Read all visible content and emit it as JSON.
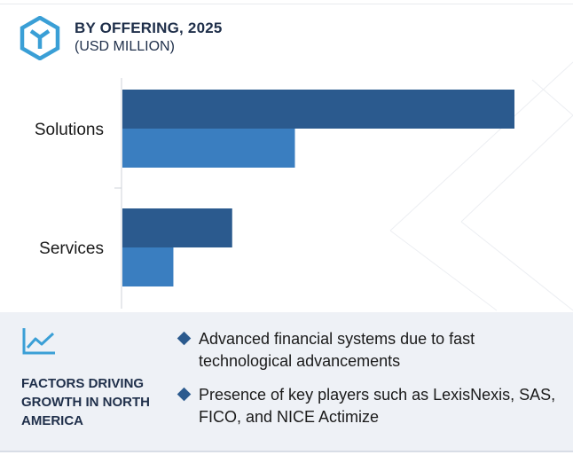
{
  "header": {
    "title": "BY OFFERING, 2025",
    "subtitle": "(USD MILLION)",
    "logo_icon": "hexagon-y-logo-icon"
  },
  "colors": {
    "dark_bar": "#2b5a8e",
    "light_bar": "#3a7ec0",
    "logo": "#3a9fd6",
    "panel_bg": "#eef1f6",
    "title_text": "#1f2f4a"
  },
  "chart_data": {
    "type": "bar",
    "orientation": "horizontal",
    "categories": [
      "Solutions",
      "Services"
    ],
    "series": [
      {
        "values": [
          100,
          28
        ]
      },
      {
        "values": [
          44,
          13
        ]
      }
    ],
    "xlim": [
      0,
      100
    ],
    "title": "BY OFFERING, 2025",
    "subtitle": "(USD MILLION)",
    "grid": false,
    "legend": "none"
  },
  "factors": {
    "icon": "trend-line-icon",
    "title": "FACTORS DRIVING GROWTH IN NORTH AMERICA",
    "items": [
      "Advanced financial systems due to fast technological advancements",
      "Presence of key players such as LexisNexis, SAS, FICO, and NICE Actimize"
    ]
  }
}
